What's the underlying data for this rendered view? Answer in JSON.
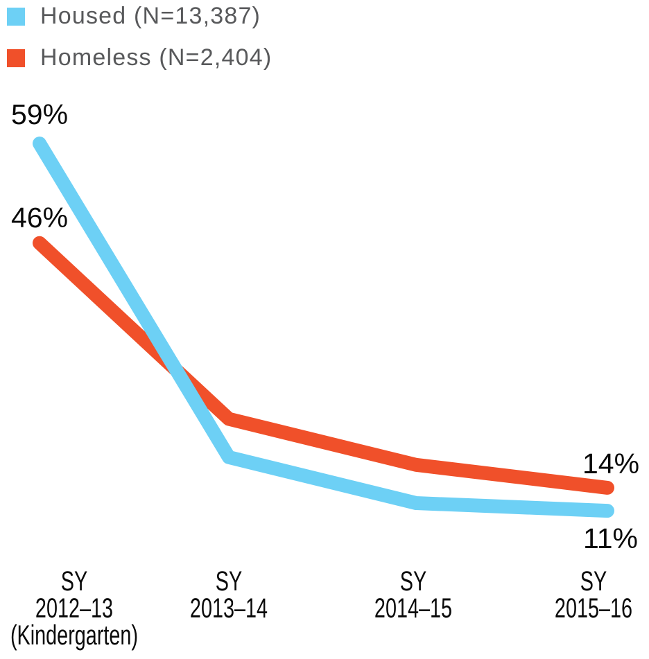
{
  "legend": {
    "position": "top-left"
  },
  "chart_data": {
    "type": "line",
    "categories_label_lines": [
      [
        "SY",
        "2012–13",
        "(Kindergarten)"
      ],
      [
        "SY",
        "2013–14"
      ],
      [
        "SY",
        "2014–15"
      ],
      [
        "SY",
        "2015–16"
      ]
    ],
    "categories": [
      "SY 2012–13 (Kindergarten)",
      "SY 2013–14",
      "SY 2014–15",
      "SY 2015–16"
    ],
    "series": [
      {
        "name": "Housed (N=13,387)",
        "color": "#6dd0f5",
        "values": [
          59,
          18,
          12,
          11
        ]
      },
      {
        "name": "Homeless (N=2,404)",
        "color": "#f0502a",
        "values": [
          46,
          23,
          17,
          14
        ]
      }
    ],
    "unit": "%",
    "annotations": [
      {
        "text": "59%",
        "series": "Housed (N=13,387)",
        "point_index": 0
      },
      {
        "text": "46%",
        "series": "Homeless (N=2,404)",
        "point_index": 0
      },
      {
        "text": "14%",
        "series": "Homeless (N=2,404)",
        "point_index": 3
      },
      {
        "text": "11%",
        "series": "Housed (N=13,387)",
        "point_index": 3
      }
    ],
    "ylim": [
      0,
      65
    ],
    "grid": false,
    "legend_position": "top-left",
    "text_colors": {
      "legend_text": "#58595b",
      "axis_and_annotation_text": "#0a0a0a"
    }
  }
}
